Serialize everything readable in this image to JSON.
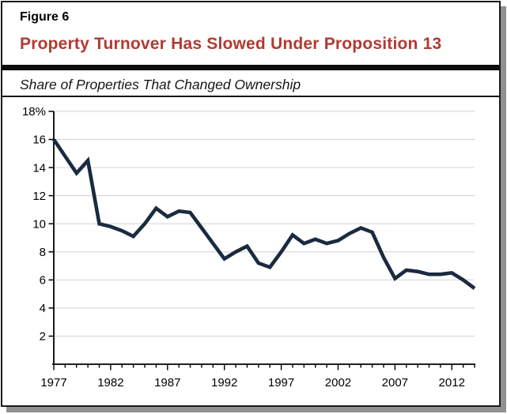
{
  "figure_label": "Figure 6",
  "title": "Property Turnover Has Slowed Under Proposition 13",
  "subtitle": "Share of Properties That Changed Ownership",
  "colors": {
    "title_red": "#b03a33",
    "line_navy": "#1a2b40",
    "gridline": "#d8d8d8",
    "axis": "#000000",
    "rule_black": "#0d0d0d",
    "card_border": "#1b1b1b",
    "shadow_gray": "#919191"
  },
  "chart_data": {
    "type": "line",
    "title": "Share of Properties That Changed Ownership",
    "xlabel": "",
    "ylabel": "",
    "xlim": [
      1977,
      2014
    ],
    "ylim": [
      0,
      18
    ],
    "grid": "horizontal",
    "legend": "none",
    "x": [
      1977,
      1978,
      1979,
      1980,
      1981,
      1982,
      1983,
      1984,
      1985,
      1986,
      1987,
      1988,
      1989,
      1990,
      1991,
      1992,
      1993,
      1994,
      1995,
      1996,
      1997,
      1998,
      1999,
      2000,
      2001,
      2002,
      2003,
      2004,
      2005,
      2006,
      2007,
      2008,
      2009,
      2010,
      2011,
      2012,
      2013,
      2014
    ],
    "values": [
      16.0,
      14.8,
      13.6,
      14.5,
      10.0,
      9.8,
      9.5,
      9.1,
      10.0,
      11.1,
      10.5,
      10.9,
      10.8,
      9.7,
      8.6,
      7.5,
      8.0,
      8.4,
      7.2,
      6.9,
      8.0,
      9.2,
      8.6,
      8.9,
      8.6,
      8.8,
      9.3,
      9.7,
      9.4,
      7.6,
      6.1,
      6.7,
      6.6,
      6.4,
      6.4,
      6.5,
      6.0,
      5.4
    ],
    "x_tick_labels": [
      "1977",
      "1982",
      "1987",
      "1992",
      "1997",
      "2002",
      "2007",
      "2012"
    ],
    "x_tick_values": [
      1977,
      1982,
      1987,
      1992,
      1997,
      2002,
      2007,
      2012
    ],
    "y_tick_values": [
      18,
      16,
      14,
      12,
      10,
      8,
      6,
      4,
      2
    ],
    "y_tick_labels": [
      "18%",
      "16",
      "14",
      "12",
      "10",
      "8",
      "6",
      "4",
      "2"
    ]
  }
}
